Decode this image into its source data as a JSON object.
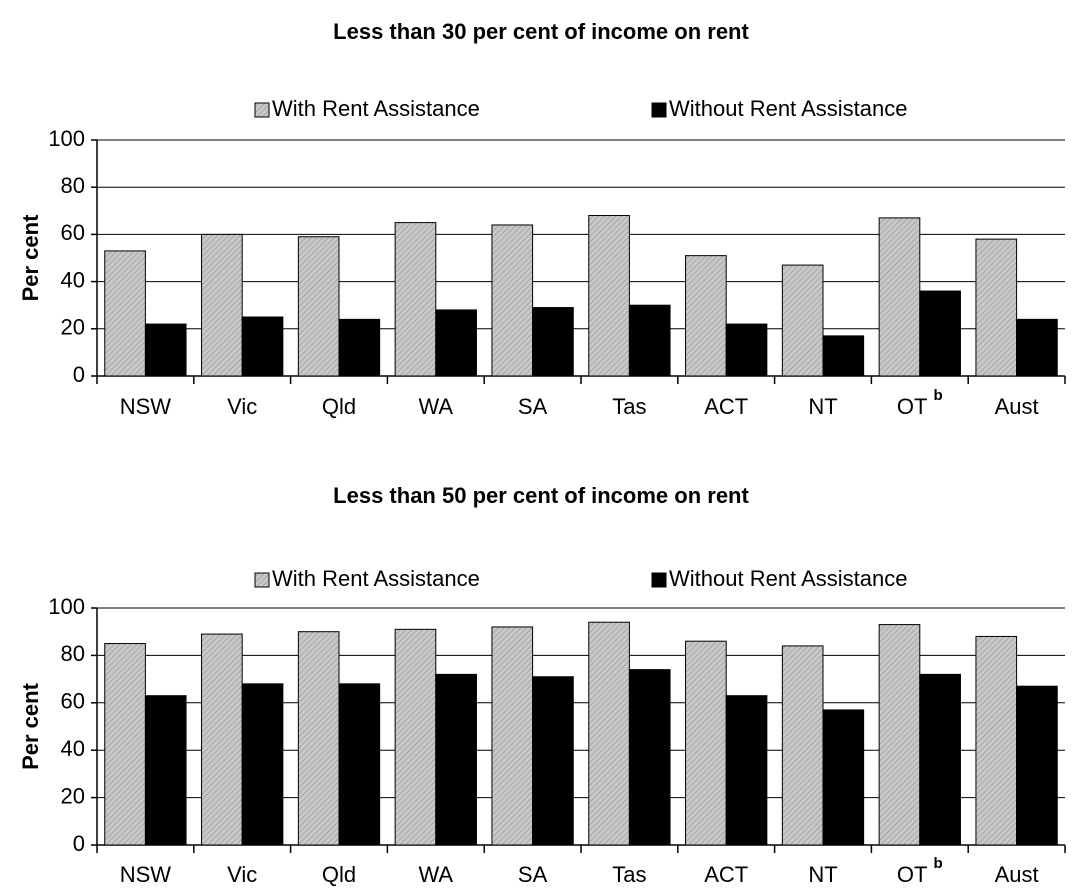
{
  "chart_data": [
    {
      "type": "bar",
      "title": "Less than 30 per cent of income on rent",
      "y_label": "Per cent",
      "categories": [
        "NSW",
        "Vic",
        "Qld",
        "WA",
        "SA",
        "Tas",
        "ACT",
        "NT",
        {
          "text": "OT",
          "superscript": "b"
        },
        "Aust"
      ],
      "series": [
        {
          "name": "With Rent Assistance",
          "color": "#c8c8c8",
          "hatch": true,
          "values": [
            53,
            60,
            59,
            65,
            64,
            68,
            51,
            47,
            67,
            58
          ]
        },
        {
          "name": "Without Rent Assistance",
          "color": "#000000",
          "hatch": false,
          "values": [
            22,
            25,
            24,
            28,
            29,
            30,
            22,
            17,
            36,
            24
          ]
        }
      ],
      "ylim": [
        0,
        100
      ],
      "yticks": [
        0,
        20,
        40,
        60,
        80,
        100
      ],
      "grid": true,
      "legend": "top"
    },
    {
      "type": "bar",
      "title": "Less than 50 per cent of income on rent",
      "y_label": "Per cent",
      "categories": [
        "NSW",
        "Vic",
        "Qld",
        "WA",
        "SA",
        "Tas",
        "ACT",
        "NT",
        {
          "text": "OT",
          "superscript": "b"
        },
        "Aust"
      ],
      "series": [
        {
          "name": "With Rent Assistance",
          "color": "#c8c8c8",
          "hatch": true,
          "values": [
            85,
            89,
            90,
            91,
            92,
            94,
            86,
            84,
            93,
            88
          ]
        },
        {
          "name": "Without Rent Assistance",
          "color": "#000000",
          "hatch": false,
          "values": [
            63,
            68,
            68,
            72,
            71,
            74,
            63,
            57,
            72,
            67
          ]
        }
      ],
      "ylim": [
        0,
        100
      ],
      "yticks": [
        0,
        20,
        40,
        60,
        80,
        100
      ],
      "grid": true,
      "legend": "top"
    }
  ]
}
